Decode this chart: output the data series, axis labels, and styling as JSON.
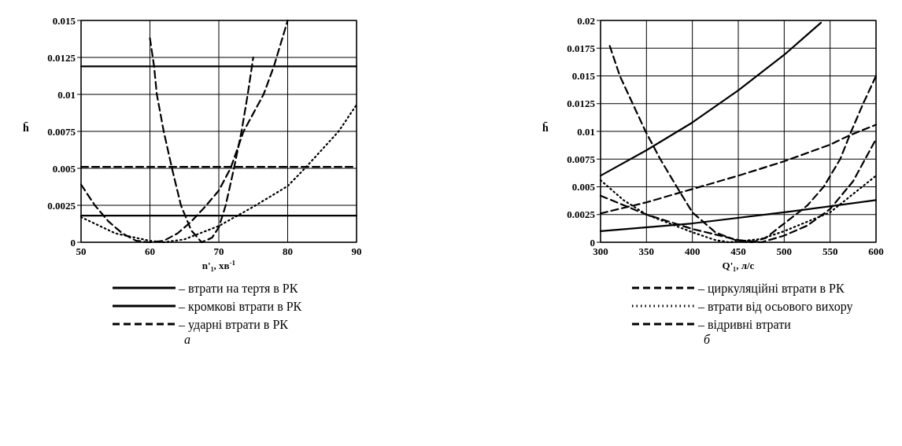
{
  "chart_data": [
    {
      "type": "line",
      "xlabel": "n'₁, хв$^{-1}$",
      "ylabel": "h̄",
      "xlim": [
        50,
        90
      ],
      "ylim": [
        0,
        0.015
      ],
      "xticks": [
        50,
        60,
        70,
        80,
        90
      ],
      "yticks": [
        0,
        0.0025,
        0.005,
        0.0075,
        0.01,
        0.0125,
        0.015
      ],
      "grid": true,
      "legend": "bottom",
      "annotations": [
        "а"
      ],
      "series": [
        {
          "name": "– втрати на тертя в РК",
          "color": "#000000",
          "line_style": "solid",
          "x": [
            50,
            90
          ],
          "values": [
            0.0119,
            0.0119
          ]
        },
        {
          "name": "– кромкові втрати в РК",
          "color": "#000000",
          "line_style": "solid",
          "x": [
            50,
            90
          ],
          "values": [
            0.0018,
            0.0018
          ]
        },
        {
          "name": "– ударні втрати в РК",
          "color": "#000000",
          "line_style": "dashed",
          "x": [
            60,
            60.6,
            61,
            62,
            63.2,
            64.5,
            66,
            67.5,
            69,
            70,
            71,
            72.2,
            73.3,
            74.2,
            75
          ],
          "values": [
            0.0138,
            0.0119,
            0.01,
            0.0075,
            0.005,
            0.0025,
            0.0008,
            0,
            0.0003,
            0.001,
            0.0025,
            0.005,
            0.0075,
            0.01,
            0.0125
          ]
        },
        {
          "color": "#000000",
          "line_style": "dashed",
          "x": [
            50,
            90
          ],
          "values": [
            0.0051,
            0.0051
          ]
        },
        {
          "color": "#000000",
          "line_style": "dotted",
          "x": [
            50,
            55,
            60,
            62,
            65,
            70,
            75,
            80,
            82.5,
            87.4,
            90
          ],
          "values": [
            0.0017,
            0.0006,
            0.0001,
            0,
            0.0002,
            0.0011,
            0.0024,
            0.0038,
            0.005,
            0.0075,
            0.0093
          ]
        },
        {
          "color": "#000000",
          "line_style": "dashed",
          "x": [
            50,
            52,
            54,
            56,
            58,
            60,
            62,
            64,
            66,
            68,
            70,
            71.7,
            73.6,
            76.5,
            78,
            80
          ],
          "values": [
            0.0039,
            0.0025,
            0.0014,
            0.0006,
            0.0001,
            0,
            0.0001,
            0.0006,
            0.0014,
            0.0024,
            0.0035,
            0.005,
            0.0075,
            0.01,
            0.0119,
            0.015
          ]
        }
      ]
    },
    {
      "type": "line",
      "xlabel": "Q'₁, л/с",
      "ylabel": "h̄",
      "xlim": [
        300,
        600
      ],
      "ylim": [
        0,
        0.02
      ],
      "xticks": [
        300,
        350,
        400,
        450,
        500,
        550,
        600
      ],
      "yticks": [
        0,
        0.0025,
        0.005,
        0.0075,
        0.01,
        0.0125,
        0.015,
        0.0175,
        0.02
      ],
      "grid": true,
      "legend": "bottom",
      "annotations": [
        "б"
      ],
      "series": [
        {
          "color": "#000000",
          "line_style": "solid",
          "x": [
            300,
            350,
            400,
            450,
            500,
            540
          ],
          "values": [
            0.006,
            0.0083,
            0.0108,
            0.0137,
            0.0169,
            0.0198
          ]
        },
        {
          "color": "#000000",
          "line_style": "solid",
          "x": [
            300,
            400,
            500,
            600
          ],
          "values": [
            0.001,
            0.0017,
            0.0027,
            0.0038
          ]
        },
        {
          "color": "#000000",
          "line_style": "dashed",
          "x": [
            300,
            350,
            400,
            450,
            475,
            500,
            525,
            550,
            575,
            600
          ],
          "values": [
            0.0042,
            0.0025,
            0.0012,
            0.0002,
            0,
            0.0006,
            0.0015,
            0.003,
            0.0055,
            0.0093
          ]
        },
        {
          "name": "– циркуляційні втрати в РК",
          "color": "#000000",
          "line_style": "dashed",
          "x": [
            300,
            350,
            400,
            450,
            500,
            550,
            570,
            600
          ],
          "values": [
            0.0026,
            0.0036,
            0.0048,
            0.006,
            0.0073,
            0.0088,
            0.0096,
            0.0106
          ]
        },
        {
          "name": "– втрати від осьового вихору",
          "color": "#000000",
          "line_style": "dotted",
          "x": [
            300,
            325,
            350,
            400,
            425,
            440,
            475,
            500,
            550,
            600
          ],
          "values": [
            0.0056,
            0.0038,
            0.0025,
            0.0009,
            0.0002,
            0,
            0.0003,
            0.001,
            0.0027,
            0.006
          ]
        },
        {
          "name": "– відривні втрати",
          "color": "#000000",
          "line_style": "dashed",
          "x": [
            310,
            321,
            335,
            349,
            365,
            383,
            400,
            425,
            450,
            465,
            480,
            500,
            525,
            543,
            561,
            573,
            586,
            600
          ],
          "values": [
            0.0177,
            0.015,
            0.0125,
            0.01,
            0.0075,
            0.005,
            0.0027,
            0.0009,
            0.0001,
            0,
            0.0004,
            0.0017,
            0.0033,
            0.005,
            0.0075,
            0.01,
            0.0125,
            0.015
          ]
        }
      ]
    }
  ]
}
